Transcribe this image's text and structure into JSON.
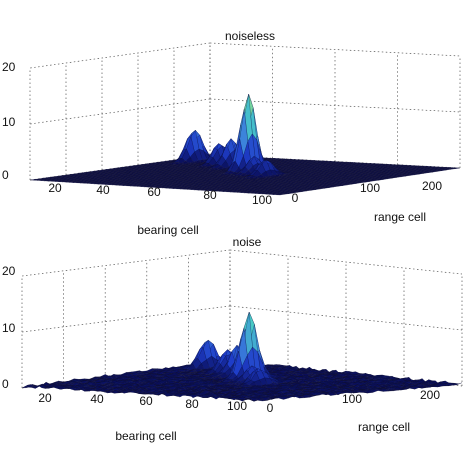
{
  "chart_data": [
    {
      "type": "surface",
      "title": "noiseless",
      "xlabel": "bearing cell",
      "ylabel": "range cell",
      "zlabel": "",
      "x_ticks": [
        "20",
        "40",
        "60",
        "80",
        "100"
      ],
      "y_ticks": [
        "0",
        "100",
        "200"
      ],
      "z_ticks": [
        "0",
        "10",
        "20"
      ],
      "xlim": [
        0,
        100
      ],
      "ylim": [
        0,
        250
      ],
      "zlim": [
        0,
        20
      ],
      "grid": true,
      "noise_floor": 0,
      "peaks": [
        {
          "bearing": 80,
          "range": 20,
          "height": 6
        },
        {
          "bearing": 75,
          "range": 55,
          "height": 4
        },
        {
          "bearing": 70,
          "range": 75,
          "height": 5
        },
        {
          "bearing": 65,
          "range": 100,
          "height": 6
        },
        {
          "bearing": 60,
          "range": 110,
          "height": 14
        },
        {
          "bearing": 55,
          "range": 125,
          "height": 3
        },
        {
          "bearing": 50,
          "range": 145,
          "height": 3
        }
      ]
    },
    {
      "type": "surface",
      "title": "noise",
      "xlabel": "bearing cell",
      "ylabel": "range cell",
      "zlabel": "",
      "x_ticks": [
        "20",
        "40",
        "60",
        "80",
        "100"
      ],
      "y_ticks": [
        "0",
        "100",
        "200"
      ],
      "z_ticks": [
        "0",
        "10",
        "20"
      ],
      "xlim": [
        0,
        100
      ],
      "ylim": [
        0,
        250
      ],
      "zlim": [
        0,
        20
      ],
      "grid": true,
      "noise_floor": 0.6,
      "peaks": [
        {
          "bearing": 80,
          "range": 20,
          "height": 5
        },
        {
          "bearing": 75,
          "range": 55,
          "height": 4
        },
        {
          "bearing": 70,
          "range": 75,
          "height": 5
        },
        {
          "bearing": 65,
          "range": 100,
          "height": 5
        },
        {
          "bearing": 60,
          "range": 110,
          "height": 12
        },
        {
          "bearing": 55,
          "range": 125,
          "height": 3
        },
        {
          "bearing": 50,
          "range": 145,
          "height": 3
        }
      ]
    }
  ]
}
